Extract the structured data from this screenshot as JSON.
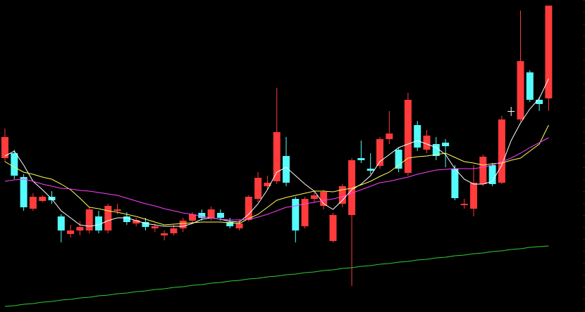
{
  "chart_data": {
    "type": "candlestick",
    "ylim": [
      0,
      444
    ],
    "up_color": "#ff3b3b",
    "down_color": "#54fcfc",
    "flat_color": "#ffffff",
    "ohlc": [
      [
        219,
        261,
        214,
        249
      ],
      [
        226,
        231,
        189,
        194
      ],
      [
        192,
        196,
        144,
        149
      ],
      [
        147,
        169,
        144,
        164
      ],
      [
        158,
        166,
        156,
        164
      ],
      [
        164,
        172,
        154,
        159
      ],
      [
        136,
        139,
        99,
        116
      ],
      [
        111,
        124,
        106,
        116
      ],
      [
        116,
        129,
        109,
        121
      ],
      [
        116,
        149,
        112,
        146
      ],
      [
        136,
        144,
        112,
        116
      ],
      [
        116,
        154,
        112,
        151
      ],
      [
        144,
        154,
        139,
        146
      ],
      [
        136,
        142,
        124,
        128
      ],
      [
        126,
        134,
        122,
        131
      ],
      [
        128,
        134,
        116,
        121
      ],
      [
        119,
        126,
        114,
        122
      ],
      [
        109,
        116,
        102,
        112
      ],
      [
        112,
        124,
        109,
        119
      ],
      [
        119,
        134,
        114,
        130
      ],
      [
        130,
        142,
        126,
        139
      ],
      [
        141,
        146,
        130,
        134
      ],
      [
        134,
        150,
        130,
        146
      ],
      [
        141,
        146,
        130,
        134
      ],
      [
        128,
        134,
        119,
        122
      ],
      [
        119,
        132,
        116,
        126
      ],
      [
        131,
        166,
        129,
        164
      ],
      [
        161,
        199,
        156,
        191
      ],
      [
        179,
        194,
        174,
        184
      ],
      [
        186,
        319,
        182,
        256
      ],
      [
        222,
        249,
        179,
        184
      ],
      [
        161,
        164,
        99,
        116
      ],
      [
        122,
        164,
        119,
        161
      ],
      [
        161,
        172,
        156,
        166
      ],
      [
        151,
        174,
        146,
        171
      ],
      [
        101,
        141,
        99,
        138
      ],
      [
        154,
        182,
        149,
        179
      ],
      [
        138,
        219,
        37,
        216
      ],
      [
        219,
        244,
        212,
        216
      ],
      [
        204,
        226,
        196,
        201
      ],
      [
        208,
        249,
        204,
        246
      ],
      [
        246,
        286,
        239,
        254
      ],
      [
        231,
        234,
        199,
        204
      ],
      [
        198,
        312,
        194,
        302
      ],
      [
        266,
        272,
        229,
        234
      ],
      [
        231,
        259,
        226,
        251
      ],
      [
        239,
        249,
        216,
        222
      ],
      [
        241,
        246,
        206,
        236
      ],
      [
        204,
        209,
        159,
        162
      ],
      [
        152,
        161,
        147,
        154
      ],
      [
        147,
        209,
        136,
        184
      ],
      [
        182,
        224,
        179,
        221
      ],
      [
        209,
        212,
        179,
        182
      ],
      [
        184,
        279,
        182,
        274
      ],
      [
        286,
        292,
        279,
        286
      ],
      [
        274,
        429,
        271,
        357
      ],
      [
        341,
        344,
        299,
        302
      ],
      [
        302,
        306,
        286,
        296
      ],
      [
        304,
        436,
        286,
        436
      ]
    ],
    "series": [
      {
        "color": "#ffffff",
        "values": [
          222,
          229,
          209,
          186,
          174,
          161,
          144,
          134,
          124,
          122,
          124,
          130,
          134,
          134,
          130,
          126,
          124,
          122,
          122,
          122,
          126,
          132,
          134,
          132,
          129,
          128,
          139,
          154,
          174,
          199,
          206,
          194,
          182,
          172,
          154,
          146,
          159,
          174,
          182,
          194,
          214,
          224,
          234,
          239,
          244,
          239,
          234,
          224,
          204,
          189,
          182,
          182,
          186,
          209,
          244,
          269,
          289,
          304,
          332
        ]
      },
      {
        "color": "#ffff55",
        "values": [
          214,
          206,
          199,
          196,
          192,
          189,
          182,
          174,
          162,
          149,
          147,
          144,
          142,
          139,
          136,
          132,
          128,
          124,
          125,
          126,
          127,
          128,
          128,
          128,
          127,
          126,
          133,
          139,
          149,
          159,
          163,
          166,
          169,
          172,
          172,
          171,
          174,
          176,
          181,
          186,
          193,
          199,
          209,
          219,
          221,
          222,
          224,
          226,
          220,
          214,
          212,
          209,
          211,
          212,
          216,
          219,
          229,
          239,
          266
        ]
      },
      {
        "color": "#ff40ff",
        "values": [
          186,
          188,
          189,
          186,
          182,
          179,
          176,
          175,
          173,
          172,
          170,
          168,
          166,
          162,
          158,
          154,
          151,
          147,
          144,
          141,
          139,
          136,
          134,
          132,
          131,
          131,
          132,
          135,
          139,
          144,
          149,
          151,
          154,
          156,
          159,
          161,
          164,
          169,
          174,
          179,
          184,
          186,
          189,
          192,
          196,
          199,
          202,
          203,
          204,
          204,
          204,
          206,
          209,
          214,
          219,
          226,
          234,
          241,
          248
        ]
      },
      {
        "color": "#33cc33",
        "values": [
          8,
          9,
          11,
          12,
          14,
          15,
          17,
          18,
          20,
          21,
          23,
          24,
          26,
          27,
          29,
          30,
          32,
          33,
          35,
          36,
          38,
          39,
          41,
          42,
          44,
          45,
          47,
          48,
          50,
          51,
          53,
          54,
          56,
          57,
          59,
          60,
          62,
          63,
          65,
          66,
          68,
          69,
          71,
          72,
          74,
          75,
          77,
          78,
          80,
          81,
          83,
          84,
          86,
          87,
          89,
          90,
          92,
          93,
          94
        ]
      }
    ]
  }
}
